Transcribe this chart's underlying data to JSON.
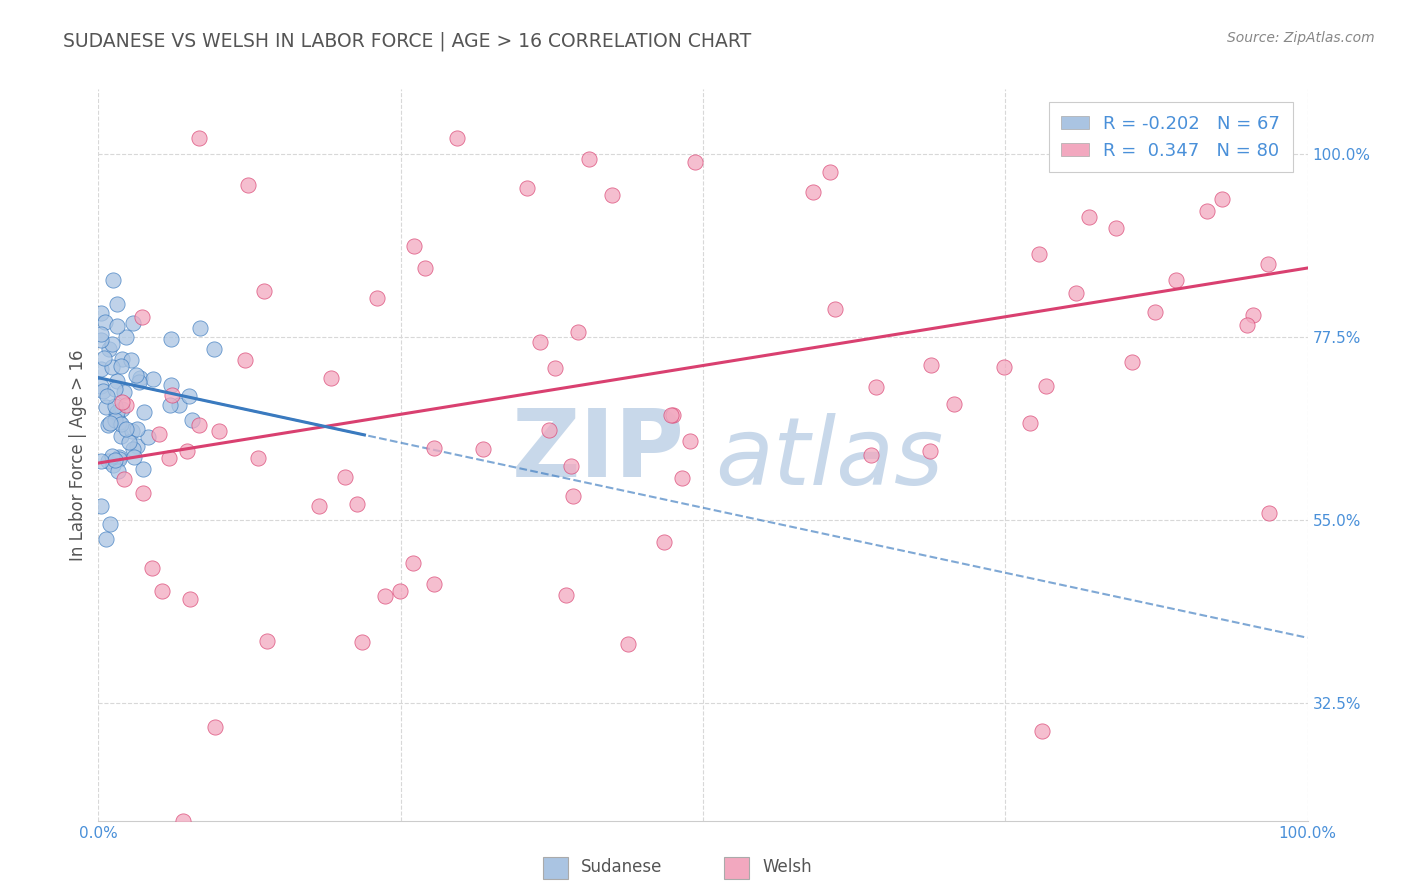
{
  "title": "SUDANESE VS WELSH IN LABOR FORCE | AGE > 16 CORRELATION CHART",
  "source_text": "Source: ZipAtlas.com",
  "ylabel": "In Labor Force | Age > 16",
  "xlim": [
    0.0,
    1.0
  ],
  "ylim": [
    0.18,
    1.08
  ],
  "xtick_positions": [
    0.0,
    1.0
  ],
  "xticklabels": [
    "0.0%",
    "100.0%"
  ],
  "ytick_positions": [
    0.325,
    0.55,
    0.775,
    1.0
  ],
  "yticklabels": [
    "32.5%",
    "55.0%",
    "77.5%",
    "100.0%"
  ],
  "r_sudanese": -0.202,
  "n_sudanese": 67,
  "r_welsh": 0.347,
  "n_welsh": 80,
  "sudanese_color": "#aac4e2",
  "welsh_color": "#f2a8bf",
  "trend_sudanese_color": "#3a7abf",
  "trend_welsh_color": "#d94070",
  "watermark_zip": "ZIP",
  "watermark_atlas": "atlas",
  "watermark_color": "#c8d8ea",
  "legend_sudanese_label": "Sudanese",
  "legend_welsh_label": "Welsh",
  "background_color": "#ffffff",
  "grid_color": "#d8d8d8",
  "title_color": "#555555",
  "axis_label_color": "#555555",
  "tick_label_color": "#4a90d9",
  "source_color": "#888888",
  "legend_text_color": "#333333",
  "legend_r_color": "#4a90d9"
}
